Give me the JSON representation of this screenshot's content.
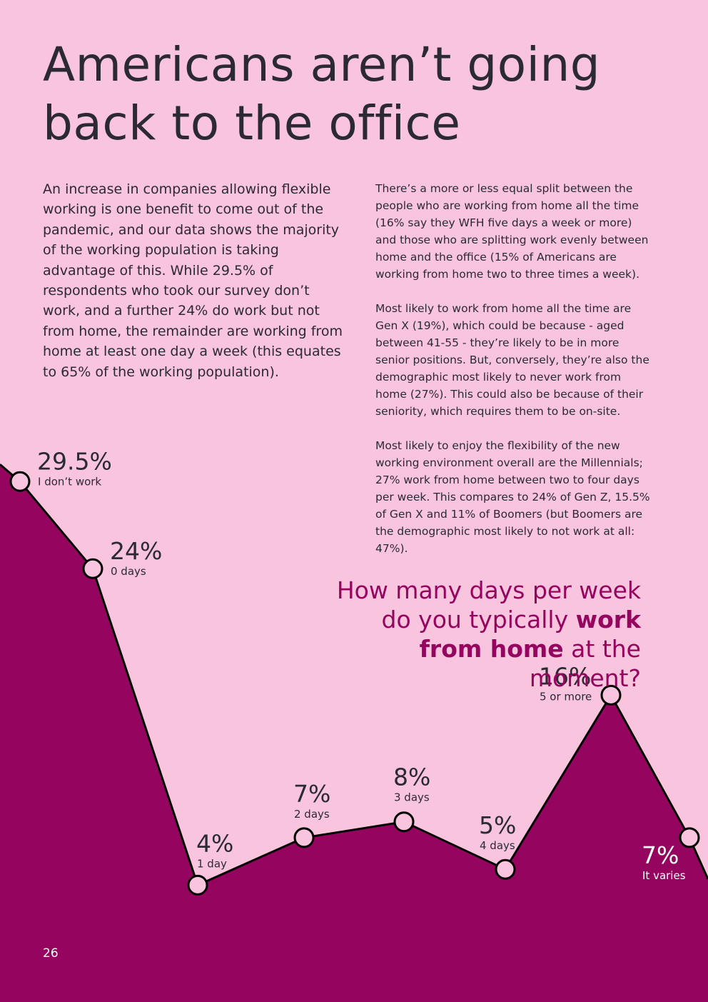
{
  "page": {
    "title": "Americans aren’t going back to the office",
    "intro": "An increase in companies allowing flexible working is one benefit to come out of the pandemic, and our data shows the majority of the working population is taking advantage of this. While 29.5% of respondents who took our survey don’t work, and a further 24% do work but not from home, the remainder are working from home at least one day a week (this equates to 65% of the working population).",
    "paragraphs": [
      "There’s a more or less equal split between the people who are working from home all the time (16% say they WFH five days a week or more) and those who are splitting work evenly between home and the office (15% of Americans are working from home two to three times a week).",
      "Most likely to work from home all the time are Gen X (19%), which could be because - aged between 41-55 - they’re likely to be in more senior positions. But, conversely, they’re also the demographic most likely to never work from home (27%). This could also be because of their seniority, which requires them to be on-site.",
      "Most likely to enjoy the flexibility of the new working environment overall are the Millennials; 27% work from home between two to four days per week. This compares to 24% of Gen Z, 15.5% of Gen X and 11% of Boomers (but Boomers are the demographic most likely to not work at all: 47%)."
    ],
    "question_prefix": "How many days per week do you typically ",
    "question_bold_1": "work from home",
    "question_suffix": " at the moment?",
    "page_number": "26"
  },
  "colors": {
    "background": "#f9c4de",
    "area_fill": "#95045e",
    "line": "#000000",
    "text_dark": "#2b2a33",
    "accent": "#95045e",
    "marker_fill": "#f9c4de"
  },
  "chart_data": {
    "type": "area",
    "title": "How many days per week do you typically work from home at the moment?",
    "categories": [
      "I don’t work",
      "0 days",
      "1 day",
      "2 days",
      "3 days",
      "4 days",
      "5 or more",
      "It varies"
    ],
    "values": [
      29.5,
      24,
      4,
      7,
      8,
      5,
      16,
      7
    ],
    "value_labels": [
      "29.5%",
      "24%",
      "4%",
      "7%",
      "8%",
      "5%",
      "16%",
      "7%"
    ],
    "unit": "%",
    "grid": false,
    "legend": "none"
  }
}
